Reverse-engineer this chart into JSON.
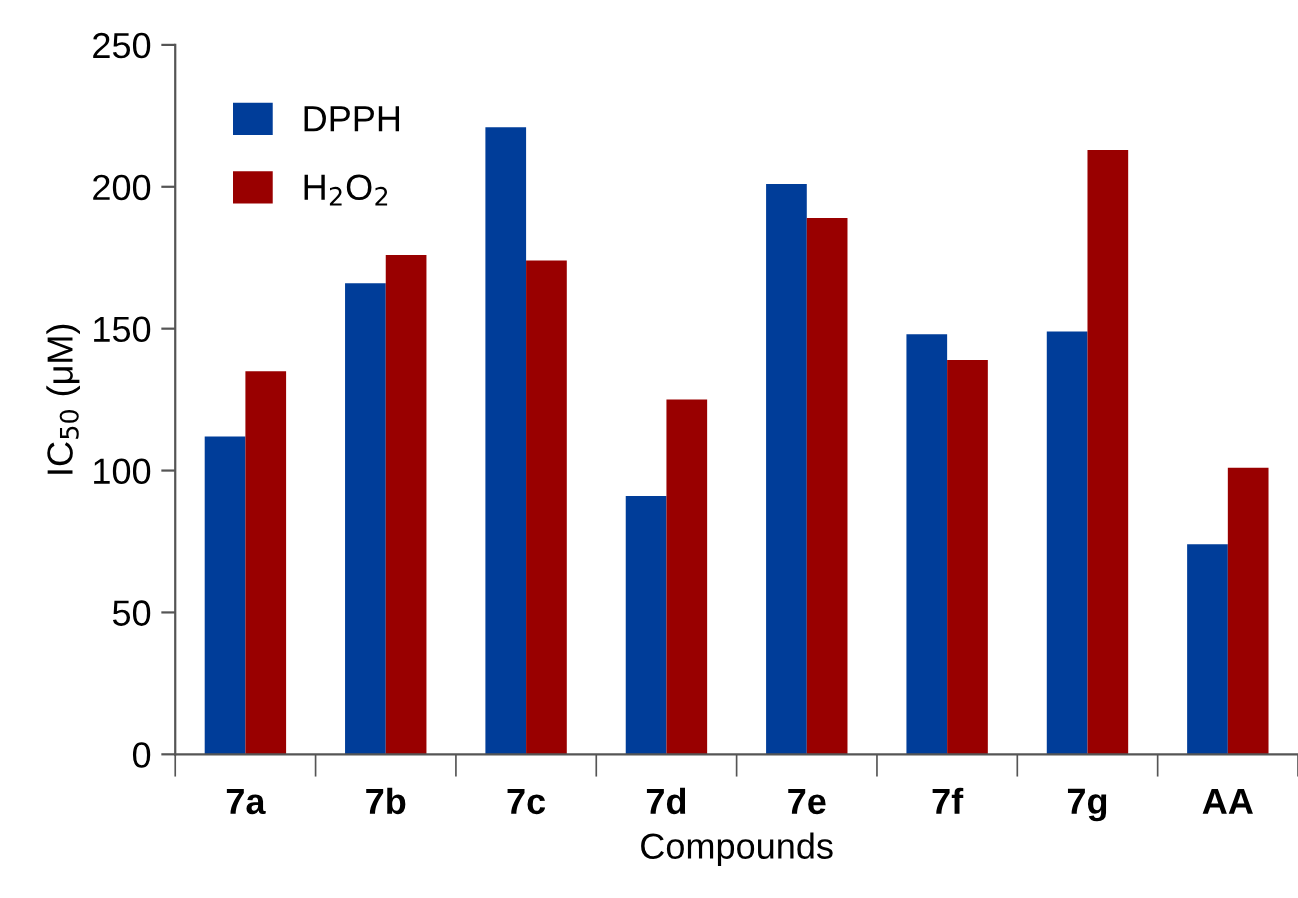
{
  "chart_data": {
    "type": "bar",
    "xlabel": "Compounds",
    "ylabel": "IC$_{50}$ (μM)",
    "categories": [
      "7a",
      "7b",
      "7c",
      "7d",
      "7e",
      "7f",
      "7g",
      "AA"
    ],
    "series": [
      {
        "name": "DPPH",
        "color": "#003d99",
        "values": [
          112,
          166,
          221,
          91,
          201,
          148,
          149,
          74
        ]
      },
      {
        "name": "H$_{2}$O$_{2}$",
        "color": "#990000",
        "values": [
          135,
          176,
          174,
          125,
          189,
          139,
          213,
          101
        ]
      }
    ],
    "ylim": [
      0,
      250
    ],
    "yticks": [
      0,
      50,
      100,
      150,
      200,
      250
    ],
    "grid": false,
    "legend": "top left"
  }
}
